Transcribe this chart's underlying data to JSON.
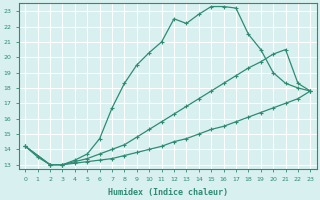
{
  "xlabel": "Humidex (Indice chaleur)",
  "bg_color": "#d8f0f0",
  "grid_color": "#ffffff",
  "line_color": "#2e8b74",
  "xlim": [
    -0.5,
    23.5
  ],
  "ylim": [
    12.7,
    23.5
  ],
  "xticks": [
    0,
    1,
    2,
    3,
    4,
    5,
    6,
    7,
    8,
    9,
    10,
    11,
    12,
    13,
    14,
    15,
    16,
    17,
    18,
    19,
    20,
    21,
    22,
    23
  ],
  "yticks": [
    13,
    14,
    15,
    16,
    17,
    18,
    19,
    20,
    21,
    22,
    23
  ],
  "line1_x": [
    0,
    1,
    2,
    3,
    4,
    5,
    6,
    7,
    8,
    9,
    10,
    11,
    12,
    13,
    14,
    15,
    16,
    17,
    18,
    19,
    20,
    21,
    22,
    23
  ],
  "line1_y": [
    14.2,
    13.5,
    13.0,
    13.0,
    13.3,
    13.7,
    14.7,
    16.7,
    18.3,
    19.5,
    20.3,
    21.0,
    22.5,
    22.2,
    22.8,
    23.3,
    23.3,
    23.2,
    21.5,
    20.5,
    19.0,
    18.3,
    18.0,
    17.8
  ],
  "line2_x": [
    0,
    2,
    3,
    4,
    5,
    6,
    7,
    8,
    9,
    10,
    11,
    12,
    13,
    14,
    15,
    16,
    17,
    18,
    19,
    20,
    21,
    22,
    23
  ],
  "line2_y": [
    14.2,
    13.0,
    13.0,
    13.2,
    13.4,
    13.7,
    14.0,
    14.3,
    14.8,
    15.3,
    15.8,
    16.3,
    16.8,
    17.3,
    17.8,
    18.3,
    18.8,
    19.3,
    19.7,
    20.2,
    20.5,
    18.3,
    17.8
  ],
  "line3_x": [
    0,
    2,
    3,
    4,
    5,
    6,
    7,
    8,
    9,
    10,
    11,
    12,
    13,
    14,
    15,
    16,
    17,
    18,
    19,
    20,
    21,
    22,
    23
  ],
  "line3_y": [
    14.2,
    13.0,
    13.0,
    13.1,
    13.2,
    13.3,
    13.4,
    13.6,
    13.8,
    14.0,
    14.2,
    14.5,
    14.7,
    15.0,
    15.3,
    15.5,
    15.8,
    16.1,
    16.4,
    16.7,
    17.0,
    17.3,
    17.8
  ]
}
